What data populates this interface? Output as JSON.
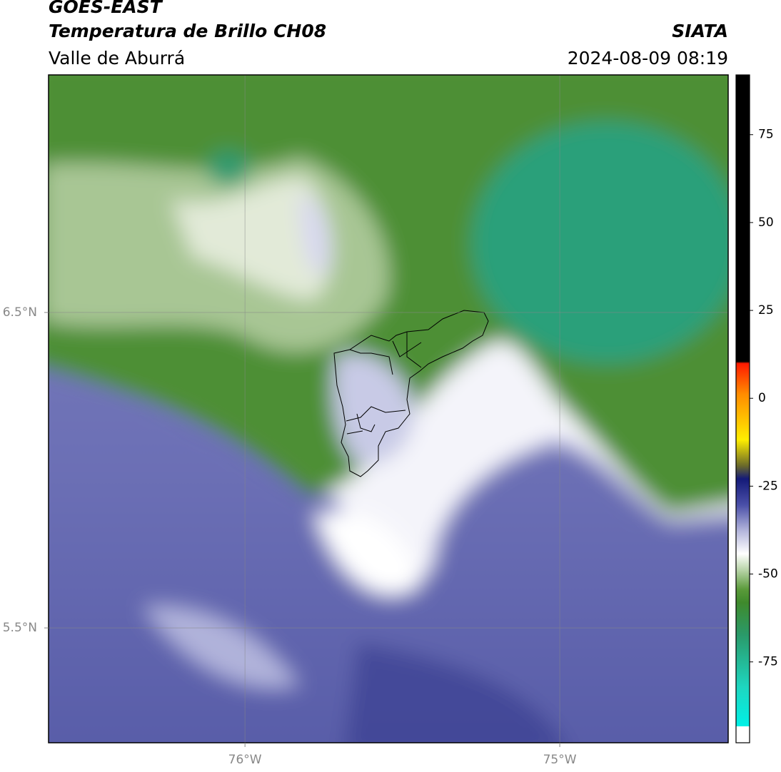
{
  "header": {
    "title": "GOES-EAST",
    "subtitle": "Temperatura de Brillo CH08",
    "region": "Valle de Aburrá",
    "source": "SIATA",
    "timestamp": "2024-08-09 08:19"
  },
  "map": {
    "xlim": [
      -76.624,
      -74.465
    ],
    "ylim": [
      5.136,
      7.253
    ],
    "xticks": [
      {
        "value": -76,
        "label": "76°W"
      },
      {
        "value": -75,
        "label": "75°W"
      }
    ],
    "yticks": [
      {
        "value": 5.5,
        "label": "5.5°N"
      },
      {
        "value": 6.5,
        "label": "6.5°N"
      }
    ],
    "grid": true
  },
  "colorbar": {
    "lim": [
      -98,
      92
    ],
    "ticks": [
      -75,
      -50,
      -25,
      0,
      25,
      50,
      75
    ]
  }
}
